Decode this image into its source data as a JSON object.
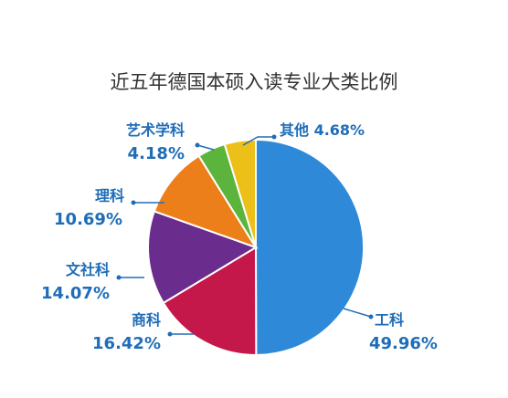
{
  "chart_data": {
    "type": "pie",
    "title": "近五年德国本硕入读专业大类比例",
    "slices": [
      {
        "name": "工科",
        "value": 49.96,
        "value_label": "49.96%",
        "color": "#2e8ad8"
      },
      {
        "name": "商科",
        "value": 16.42,
        "value_label": "16.42%",
        "color": "#c4174a"
      },
      {
        "name": "文社科",
        "value": 14.07,
        "value_label": "14.07%",
        "color": "#6a2d8e"
      },
      {
        "name": "理科",
        "value": 10.69,
        "value_label": "10.69%",
        "color": "#ec7f1a"
      },
      {
        "name": "艺术学科",
        "value": 4.18,
        "value_label": "4.18%",
        "color": "#5cb43c"
      },
      {
        "name": "其他",
        "value": 4.68,
        "value_label": "4.68%",
        "color": "#ecc019"
      }
    ],
    "label_color": "#1f6db8",
    "start_angle_deg": 0,
    "direction": "clockwise",
    "legend": "none"
  }
}
